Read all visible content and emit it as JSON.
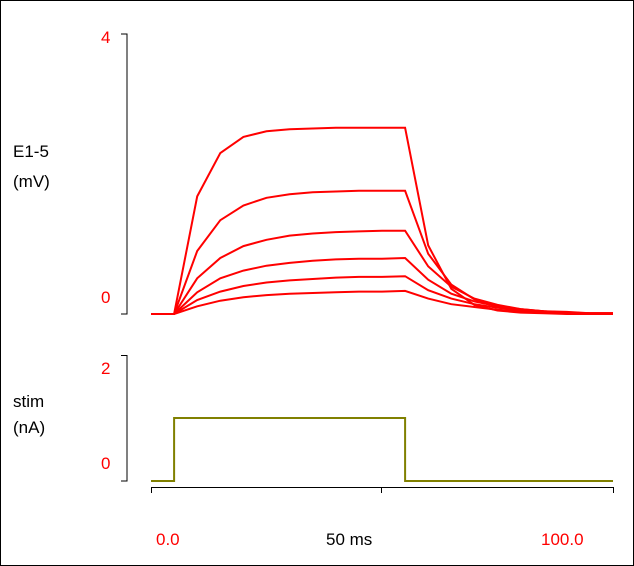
{
  "chart_data": [
    {
      "type": "line",
      "ylabel_lines": [
        "E1-5",
        "(mV)"
      ],
      "ylim": [
        0,
        4
      ],
      "y_tick_labels": [
        "4",
        "0"
      ],
      "xlim": [
        0,
        100
      ],
      "x": [
        0,
        5,
        10,
        15,
        20,
        25,
        30,
        35,
        40,
        45,
        50,
        55,
        60,
        65,
        70,
        75,
        80,
        85,
        90,
        95,
        100
      ],
      "color": "#ff0000",
      "series": [
        {
          "values": [
            0,
            0,
            1.68,
            2.3,
            2.53,
            2.61,
            2.64,
            2.65,
            2.66,
            2.66,
            2.66,
            2.66,
            0.98,
            0.36,
            0.13,
            0.05,
            0.02,
            0.01,
            0,
            0,
            0
          ]
        },
        {
          "values": [
            0,
            0,
            0.9,
            1.34,
            1.55,
            1.66,
            1.71,
            1.74,
            1.75,
            1.76,
            1.76,
            1.76,
            0.86,
            0.42,
            0.21,
            0.1,
            0.05,
            0.02,
            0.01,
            0,
            0
          ]
        },
        {
          "values": [
            0,
            0,
            0.51,
            0.8,
            0.97,
            1.06,
            1.12,
            1.15,
            1.17,
            1.18,
            1.19,
            1.19,
            0.68,
            0.39,
            0.22,
            0.13,
            0.07,
            0.04,
            0.03,
            0.01,
            0.01
          ]
        },
        {
          "values": [
            0,
            0,
            0.31,
            0.51,
            0.62,
            0.69,
            0.73,
            0.76,
            0.78,
            0.79,
            0.79,
            0.8,
            0.49,
            0.29,
            0.18,
            0.11,
            0.07,
            0.04,
            0.02,
            0.01,
            0.01
          ]
        },
        {
          "values": [
            0,
            0,
            0.2,
            0.32,
            0.4,
            0.45,
            0.48,
            0.5,
            0.52,
            0.53,
            0.53,
            0.54,
            0.34,
            0.22,
            0.14,
            0.09,
            0.06,
            0.04,
            0.02,
            0.01,
            0.01
          ]
        },
        {
          "values": [
            0,
            0,
            0.11,
            0.19,
            0.24,
            0.27,
            0.29,
            0.3,
            0.31,
            0.32,
            0.32,
            0.33,
            0.22,
            0.14,
            0.1,
            0.06,
            0.04,
            0.03,
            0.02,
            0.01,
            0.01
          ]
        }
      ]
    },
    {
      "type": "line",
      "ylabel_lines": [
        "stim",
        "(nA)"
      ],
      "ylim": [
        0,
        2
      ],
      "y_tick_labels": [
        "2",
        "0"
      ],
      "xlim": [
        0,
        100
      ],
      "color": "#808000",
      "series": [
        {
          "x": [
            0,
            5,
            5,
            55,
            55,
            100
          ],
          "values": [
            0,
            0,
            1,
            1,
            0,
            0
          ]
        }
      ]
    }
  ],
  "x_axis": {
    "tick_labels": [
      "0.0",
      "50 ms",
      "100.0"
    ]
  },
  "colors": {
    "axis_label_numbers": "#ff0000",
    "text": "#000000"
  }
}
